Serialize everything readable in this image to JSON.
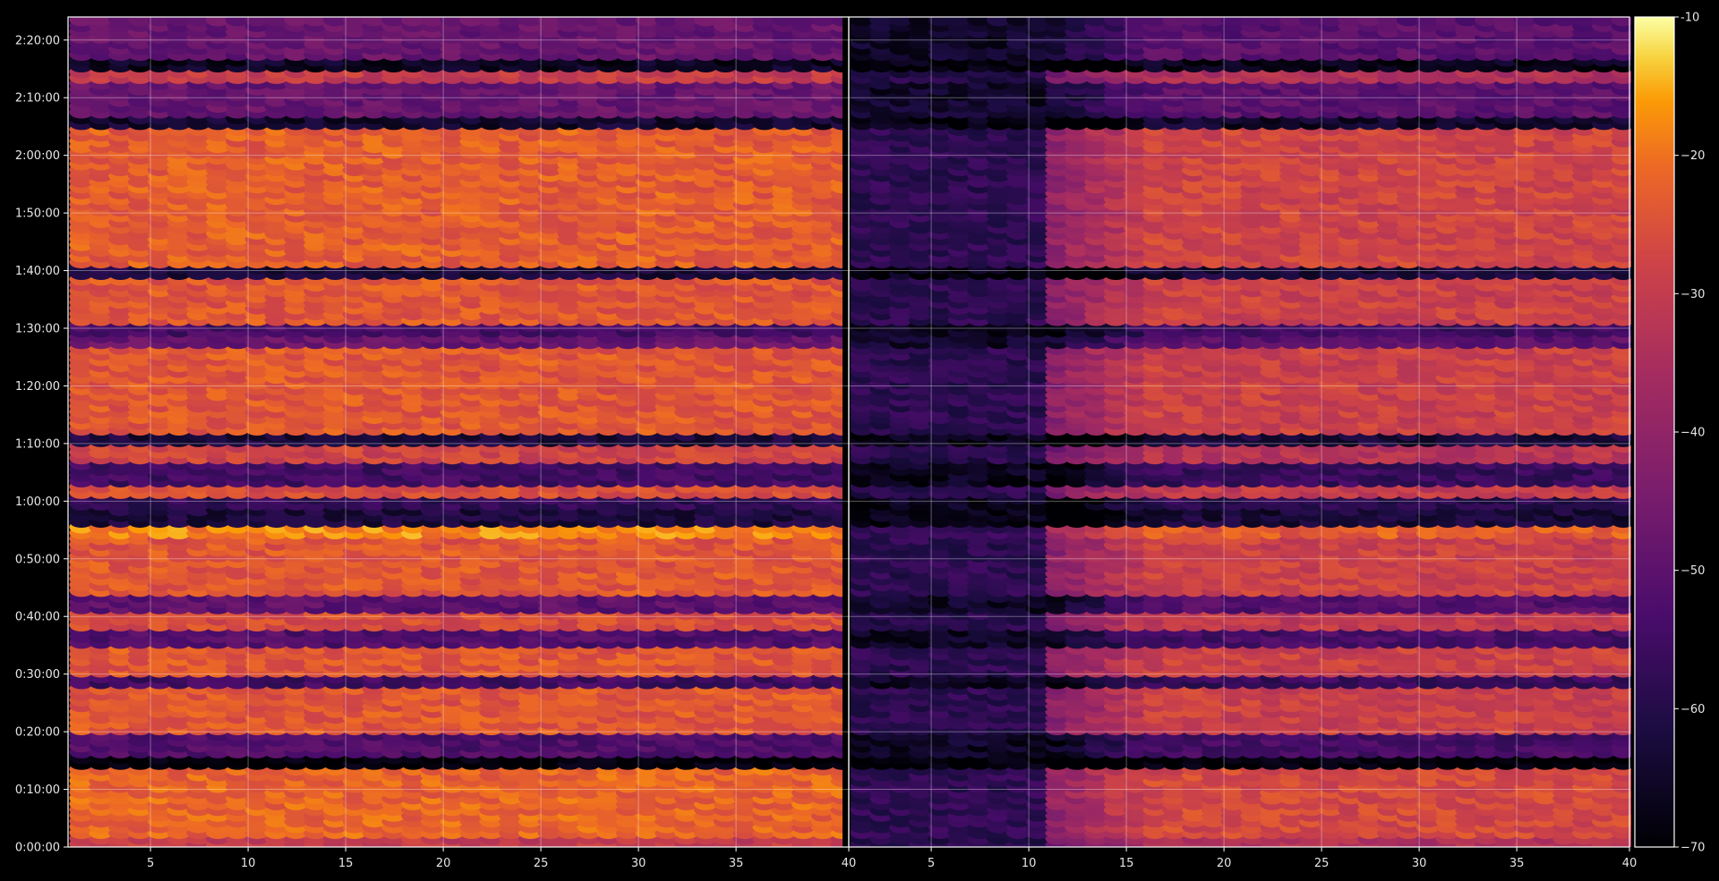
{
  "chart_data": {
    "type": "heatmap",
    "title": "",
    "colormap": "inferno",
    "background": "#000000",
    "grid": true,
    "panels": [
      {
        "name": "left",
        "xlim": [
          1,
          40
        ],
        "x_ticks": [
          5,
          10,
          15,
          20,
          25,
          30,
          35,
          40
        ],
        "level_profile": {
          "channel_1_10": 1.0,
          "channel_11_40": 1.0
        }
      },
      {
        "name": "right",
        "xlim": [
          1,
          40
        ],
        "x_ticks": [
          5,
          10,
          15,
          20,
          25,
          30,
          35,
          40
        ],
        "level_profile": {
          "channel_1_10": 0.25,
          "channel_11_40": 0.9
        }
      }
    ],
    "y_ticks": [
      "0:00:00",
      "0:10:00",
      "0:20:00",
      "0:30:00",
      "0:40:00",
      "0:50:00",
      "1:00:00",
      "1:10:00",
      "1:20:00",
      "1:30:00",
      "1:40:00",
      "1:50:00",
      "2:00:00",
      "2:10:00",
      "2:20:00"
    ],
    "ylim_minutes": [
      0,
      144
    ],
    "colorbar": {
      "min": -70,
      "max": -10,
      "ticks": [
        "-10",
        "−20",
        "−30",
        "−40",
        "−50",
        "−60",
        "−70"
      ]
    },
    "row_levels_dB": [
      {
        "t": [
          0,
          2
        ],
        "level": -30
      },
      {
        "t": [
          2,
          14
        ],
        "level": -22
      },
      {
        "t": [
          14,
          16
        ],
        "level": -70
      },
      {
        "t": [
          16,
          20
        ],
        "level": -52
      },
      {
        "t": [
          20,
          28
        ],
        "level": -24
      },
      {
        "t": [
          28,
          30
        ],
        "level": -55
      },
      {
        "t": [
          30,
          35
        ],
        "level": -24
      },
      {
        "t": [
          35,
          38
        ],
        "level": -52
      },
      {
        "t": [
          38,
          41
        ],
        "level": -26
      },
      {
        "t": [
          41,
          44
        ],
        "level": -50
      },
      {
        "t": [
          44,
          54
        ],
        "level": -24
      },
      {
        "t": [
          54,
          56
        ],
        "level": -18
      },
      {
        "t": [
          56,
          59
        ],
        "level": -62
      },
      {
        "t": [
          59,
          61
        ],
        "level": -58
      },
      {
        "t": [
          61,
          63
        ],
        "level": -26
      },
      {
        "t": [
          63,
          67
        ],
        "level": -55
      },
      {
        "t": [
          67,
          70
        ],
        "level": -28
      },
      {
        "t": [
          70,
          72
        ],
        "level": -62
      },
      {
        "t": [
          72,
          87
        ],
        "level": -24
      },
      {
        "t": [
          87,
          89
        ],
        "level": -48
      },
      {
        "t": [
          89,
          91
        ],
        "level": -54
      },
      {
        "t": [
          91,
          99
        ],
        "level": -24
      },
      {
        "t": [
          99,
          101
        ],
        "level": -62
      },
      {
        "t": [
          101,
          125
        ],
        "level": -23
      },
      {
        "t": [
          125,
          127
        ],
        "level": -64
      },
      {
        "t": [
          127,
          133
        ],
        "level": -48
      },
      {
        "t": [
          133,
          135
        ],
        "level": -30
      },
      {
        "t": [
          135,
          137
        ],
        "level": -66
      },
      {
        "t": [
          137,
          144
        ],
        "level": -48
      }
    ]
  }
}
